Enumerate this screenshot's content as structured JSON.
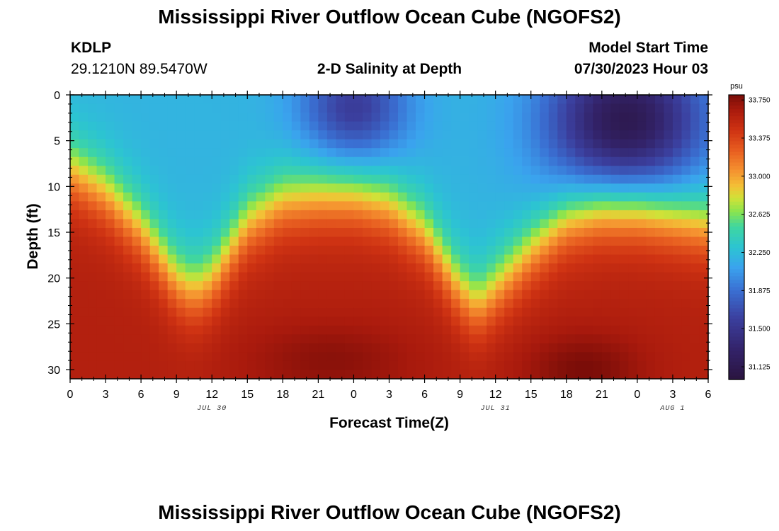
{
  "page": {
    "title": "Mississippi River Outflow Ocean Cube (NGOFS2)",
    "title_repeat": "Mississippi River Outflow Ocean Cube (NGOFS2)",
    "station_id": "KDLP",
    "station_coords": "29.1210N  89.5470W",
    "subtitle": "2-D Salinity at Depth",
    "model_start_label": "Model Start Time",
    "model_start_value": "07/30/2023 Hour 03"
  },
  "chart_data": {
    "type": "heatmap",
    "title": "2-D Salinity at Depth",
    "xlabel": "Forecast Time(Z)",
    "ylabel": "Depth (ft)",
    "x_tick_labels": [
      "0",
      "3",
      "6",
      "9",
      "12",
      "15",
      "18",
      "21",
      "0",
      "3",
      "6",
      "9",
      "12",
      "15",
      "18",
      "21",
      "0",
      "3",
      "6"
    ],
    "x_range_hours": [
      0,
      54
    ],
    "date_labels": [
      {
        "label": "JUL 30",
        "hour": 12
      },
      {
        "label": "JUL 31",
        "hour": 36
      },
      {
        "label": "AUG 1",
        "hour": 51
      }
    ],
    "y_tick_labels": [
      "0",
      "5",
      "10",
      "15",
      "20",
      "25",
      "30"
    ],
    "y_ticks": [
      0,
      5,
      10,
      15,
      20,
      25,
      30
    ],
    "ylim": [
      0,
      31
    ],
    "y_inverted": true,
    "colorbar": {
      "unit": "psu",
      "min": 31.0,
      "max": 33.8,
      "tick_values": [
        33.75,
        33.375,
        33.0,
        32.625,
        32.25,
        31.875,
        31.5,
        31.125
      ],
      "tick_labels": [
        "33.750",
        "33.375",
        "33.000",
        "32.625",
        "32.250",
        "31.875",
        "31.500",
        "31.125"
      ]
    },
    "colorscale": [
      {
        "v": 31.0,
        "c": "#2a1440"
      },
      {
        "v": 31.3,
        "c": "#33236a"
      },
      {
        "v": 31.6,
        "c": "#3b3f9e"
      },
      {
        "v": 31.875,
        "c": "#3a6fd2"
      },
      {
        "v": 32.1,
        "c": "#3aa3ee"
      },
      {
        "v": 32.3,
        "c": "#2cc4d2"
      },
      {
        "v": 32.5,
        "c": "#3fd6a0"
      },
      {
        "v": 32.65,
        "c": "#8ae44e"
      },
      {
        "v": 32.78,
        "c": "#cfe238"
      },
      {
        "v": 32.9,
        "c": "#f3c036"
      },
      {
        "v": 33.05,
        "c": "#f59330"
      },
      {
        "v": 33.25,
        "c": "#e85e20"
      },
      {
        "v": 33.45,
        "c": "#cf3313"
      },
      {
        "v": 33.65,
        "c": "#a91a0d"
      },
      {
        "v": 33.8,
        "c": "#7a0d08"
      }
    ],
    "mixed_layer_depth_ft": {
      "hours": [
        0,
        3,
        6,
        9,
        10.5,
        12,
        15,
        18,
        21,
        24,
        27,
        30,
        33,
        34.5,
        36,
        39,
        42,
        45,
        48,
        51,
        54
      ],
      "values": [
        8,
        10.5,
        14.5,
        20,
        21.2,
        20,
        14,
        11.5,
        11,
        11,
        12,
        15,
        21,
        22.8,
        21,
        17,
        13.5,
        12,
        12,
        13,
        14
      ]
    },
    "surface_salinity_psu": 32.2,
    "deep_salinity_psu": 33.6,
    "fresh_lenses": [
      {
        "center_hour": 24,
        "center_depth_ft": 1.5,
        "width_hours": 4.5,
        "depth_extent_ft": 6,
        "min_psu": 31.55
      },
      {
        "center_hour": 47,
        "center_depth_ft": 3,
        "width_hours": 6.5,
        "depth_extent_ft": 8,
        "min_psu": 31.1
      }
    ],
    "deep_salty_cores": [
      {
        "center_hour": 22,
        "center_depth_ft": 29,
        "width_hours": 7,
        "depth_extent_ft": 4,
        "max_psu": 33.75
      },
      {
        "center_hour": 43.5,
        "center_depth_ft": 30,
        "width_hours": 5,
        "depth_extent_ft": 4,
        "max_psu": 33.8
      }
    ]
  }
}
